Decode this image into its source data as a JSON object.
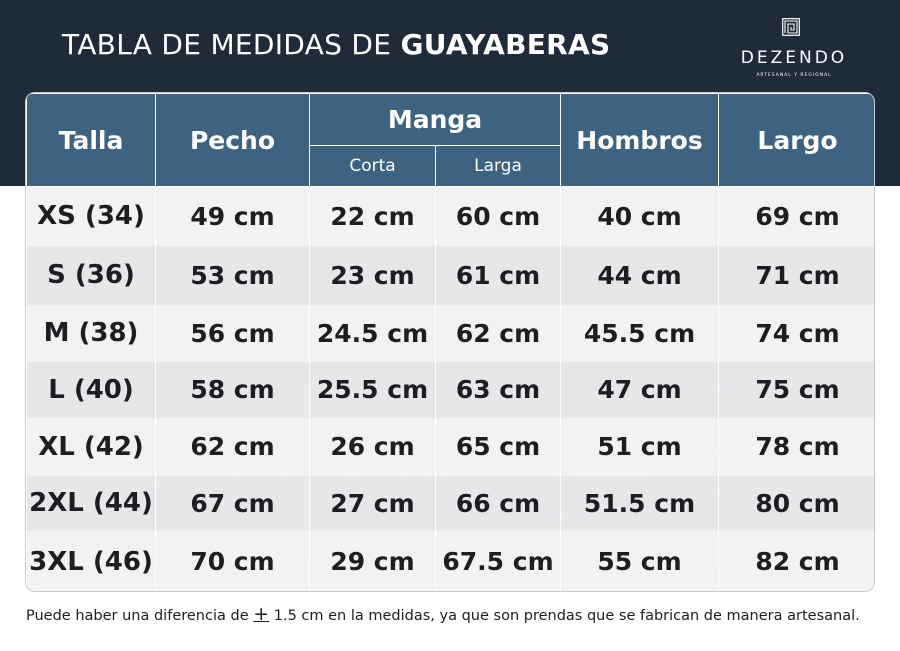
{
  "header": {
    "title_light": "TABLA DE MEDIDAS DE ",
    "title_bold": "GUAYABERAS"
  },
  "brand": {
    "name": "DEZENDO",
    "tagline": "ARTESANAL Y REGIONAL",
    "icon": "spiral-logo-icon"
  },
  "table": {
    "headers": {
      "talla": "Talla",
      "pecho": "Pecho",
      "manga": "Manga",
      "corta": "Corta",
      "larga": "Larga",
      "hombros": "Hombros",
      "largo": "Largo"
    },
    "rows": [
      {
        "talla": "XS (34)",
        "pecho": "49 cm",
        "corta": "22 cm",
        "larga": "60 cm",
        "hombros": "40 cm",
        "largo": "69 cm"
      },
      {
        "talla": "S (36)",
        "pecho": "53 cm",
        "corta": "23 cm",
        "larga": "61 cm",
        "hombros": "44 cm",
        "largo": "71 cm"
      },
      {
        "talla": "M (38)",
        "pecho": "56 cm",
        "corta": "24.5 cm",
        "larga": "62 cm",
        "hombros": "45.5 cm",
        "largo": "74 cm"
      },
      {
        "talla": "L (40)",
        "pecho": "58 cm",
        "corta": "25.5 cm",
        "larga": "63 cm",
        "hombros": "47 cm",
        "largo": "75 cm"
      },
      {
        "talla": "XL (42)",
        "pecho": "62 cm",
        "corta": "26 cm",
        "larga": "65 cm",
        "hombros": "51 cm",
        "largo": "78 cm"
      },
      {
        "talla": "2XL (44)",
        "pecho": "67 cm",
        "corta": "27 cm",
        "larga": "66 cm",
        "hombros": "51.5 cm",
        "largo": "80 cm"
      },
      {
        "talla": "3XL (46)",
        "pecho": "70 cm",
        "corta": "29 cm",
        "larga": "67.5 cm",
        "hombros": "55 cm",
        "largo": "82 cm"
      }
    ]
  },
  "footnote": {
    "before": "Puede haber una diferencia de ",
    "symbol": "+",
    "after": " 1.5 cm en la medidas, ya que son prendas que se fabrican de manera artesanal."
  },
  "colors": {
    "header_band": "#1f2b39",
    "table_header": "#3d6380",
    "row_light": "#f1f1f2",
    "row_dark": "#e2e4e7",
    "text": "#1e1e22"
  }
}
